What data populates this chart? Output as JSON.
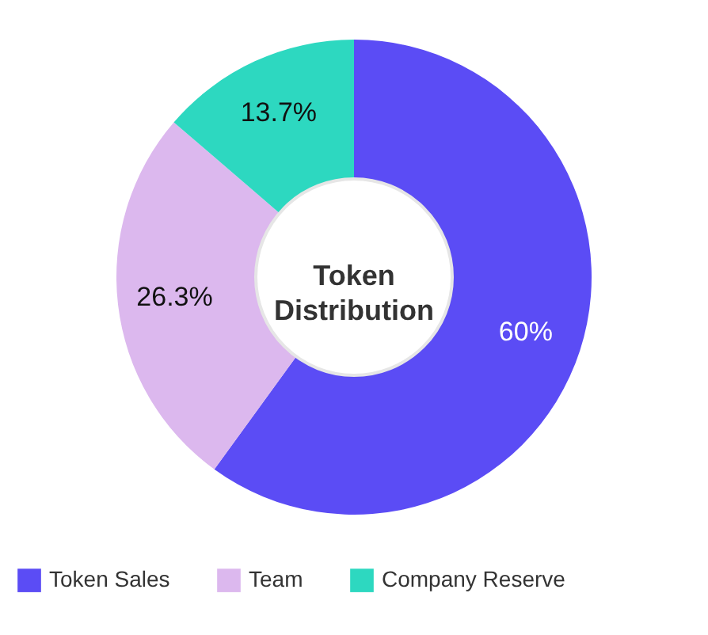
{
  "chart_data": {
    "type": "donut",
    "title": "Token Distribution",
    "categories": [
      "Token Sales",
      "Team",
      "Company Reserve"
    ],
    "values": [
      60,
      26.3,
      13.7
    ],
    "colors": [
      "#5b4cf5",
      "#dcb8ee",
      "#2dd8c0"
    ],
    "value_labels": [
      "60%",
      "26.3%",
      "13.7%"
    ],
    "legend": "bottom"
  }
}
